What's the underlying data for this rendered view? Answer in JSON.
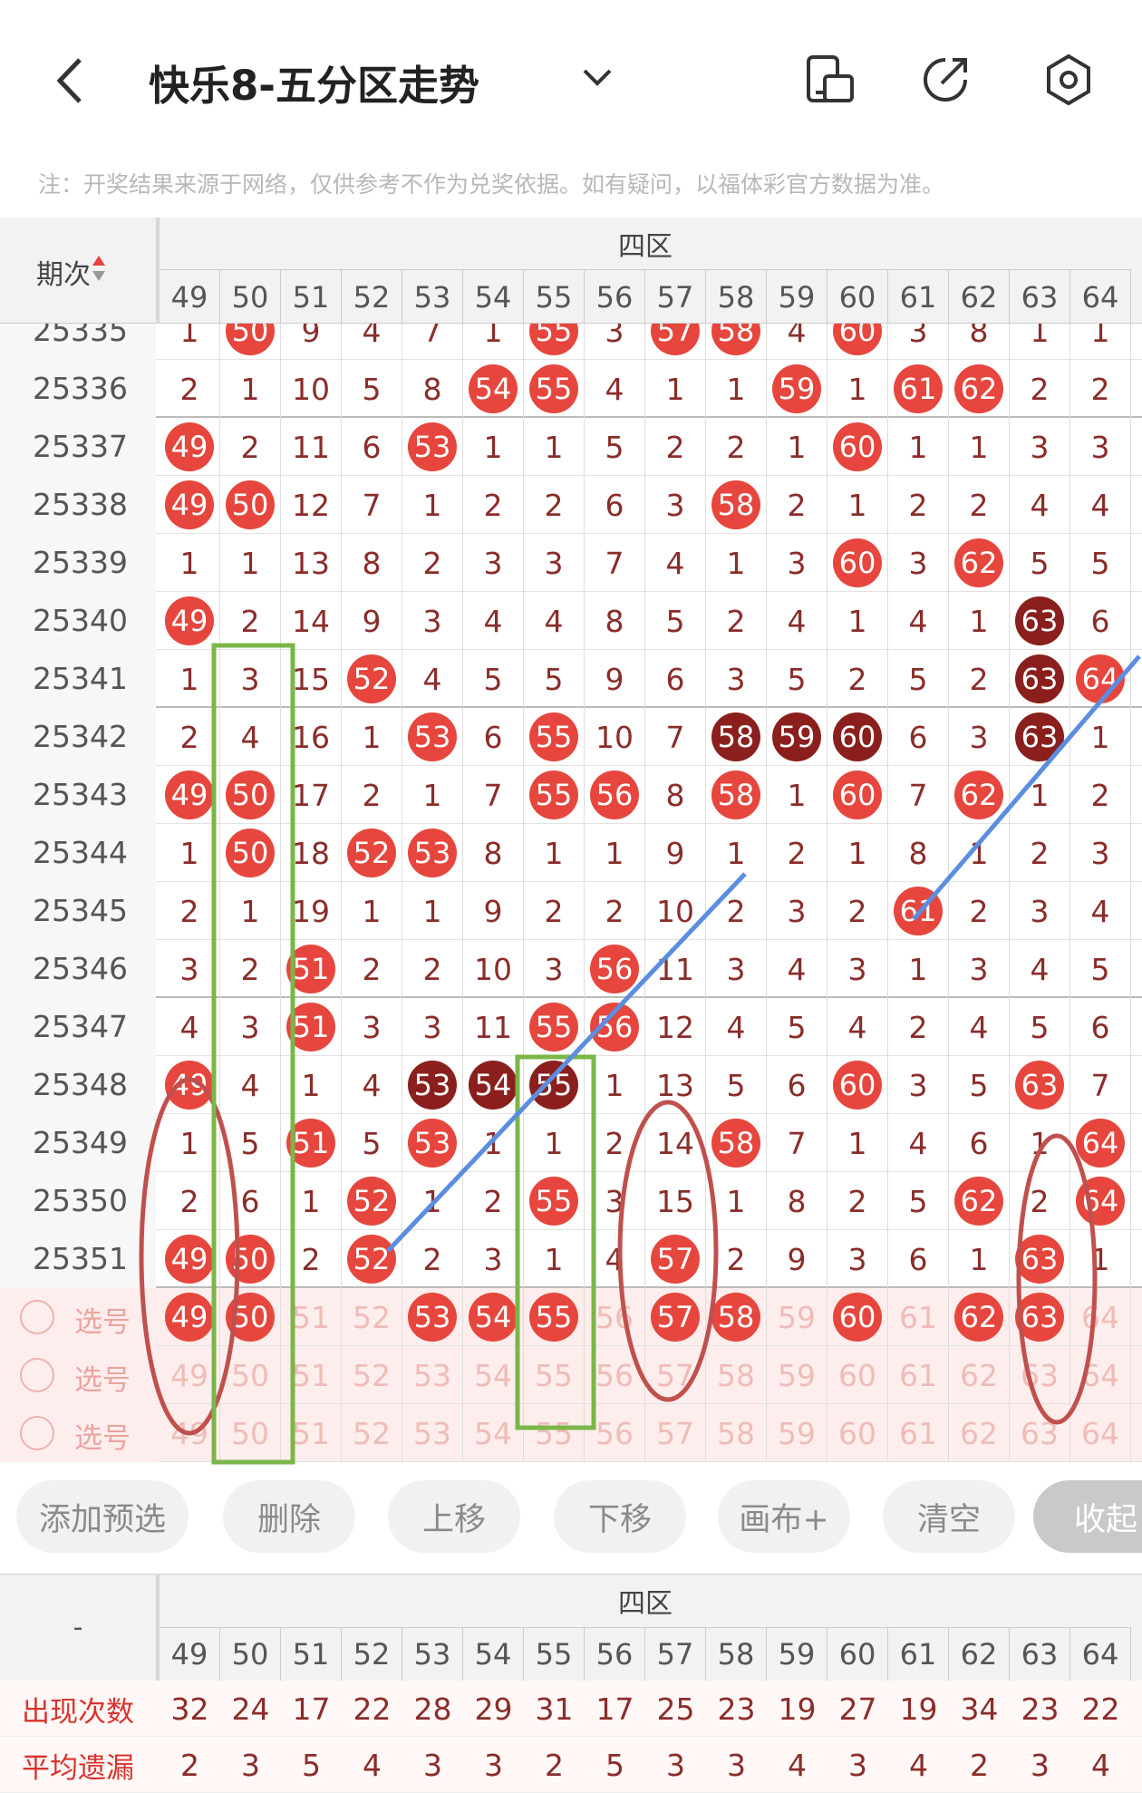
{
  "header": {
    "title": "快乐8-五分区走势",
    "note": "注：开奖结果来源于网络，仅供参考不作为兑奖依据。如有疑问，以福体彩官方数据为准。"
  },
  "grid": {
    "issue_label": "期次",
    "group": "四区",
    "columns": [
      49,
      50,
      51,
      52,
      53,
      54,
      55,
      56,
      57,
      58,
      59,
      60,
      61,
      62,
      63,
      64
    ],
    "rows": [
      {
        "issue": 25335,
        "cells": [
          1,
          {
            "value": 50,
            "style": "hit"
          },
          9,
          4,
          7,
          1,
          {
            "value": 55,
            "style": "hit"
          },
          3,
          {
            "value": 57,
            "style": "hit"
          },
          {
            "value": 58,
            "style": "hit"
          },
          4,
          {
            "value": 60,
            "style": "hit"
          },
          3,
          8,
          1,
          1
        ]
      },
      {
        "issue": 25336,
        "cells": [
          2,
          1,
          10,
          5,
          8,
          {
            "value": 54,
            "style": "hit"
          },
          {
            "value": 55,
            "style": "hit"
          },
          4,
          1,
          1,
          {
            "value": 59,
            "style": "hit"
          },
          1,
          {
            "value": 61,
            "style": "hit"
          },
          {
            "value": 62,
            "style": "hit"
          },
          2,
          2
        ]
      },
      {
        "issue": 25337,
        "cells": [
          {
            "value": 49,
            "style": "hit"
          },
          2,
          11,
          6,
          {
            "value": 53,
            "style": "hit"
          },
          1,
          1,
          5,
          2,
          2,
          1,
          {
            "value": 60,
            "style": "hit"
          },
          1,
          1,
          3,
          3
        ]
      },
      {
        "issue": 25338,
        "cells": [
          {
            "value": 49,
            "style": "hit"
          },
          {
            "value": 50,
            "style": "hit"
          },
          12,
          7,
          1,
          2,
          2,
          6,
          3,
          {
            "value": 58,
            "style": "hit"
          },
          2,
          1,
          2,
          2,
          4,
          4
        ]
      },
      {
        "issue": 25339,
        "cells": [
          1,
          1,
          13,
          8,
          2,
          3,
          3,
          7,
          4,
          1,
          3,
          {
            "value": 60,
            "style": "hit"
          },
          3,
          {
            "value": 62,
            "style": "hit"
          },
          5,
          5
        ]
      },
      {
        "issue": 25340,
        "cells": [
          {
            "value": 49,
            "style": "hit"
          },
          2,
          14,
          9,
          3,
          4,
          4,
          8,
          5,
          2,
          4,
          1,
          4,
          1,
          {
            "value": 63,
            "style": "repeat"
          },
          6
        ]
      },
      {
        "issue": 25341,
        "cells": [
          1,
          3,
          15,
          {
            "value": 52,
            "style": "hit"
          },
          4,
          5,
          5,
          9,
          6,
          3,
          5,
          2,
          5,
          2,
          {
            "value": 63,
            "style": "repeat"
          },
          {
            "value": 64,
            "style": "hit"
          }
        ]
      },
      {
        "issue": 25342,
        "cells": [
          2,
          4,
          16,
          1,
          {
            "value": 53,
            "style": "hit"
          },
          6,
          {
            "value": 55,
            "style": "hit"
          },
          10,
          7,
          {
            "value": 58,
            "style": "repeat"
          },
          {
            "value": 59,
            "style": "repeat"
          },
          {
            "value": 60,
            "style": "repeat"
          },
          6,
          3,
          {
            "value": 63,
            "style": "repeat"
          },
          1
        ]
      },
      {
        "issue": 25343,
        "cells": [
          {
            "value": 49,
            "style": "hit"
          },
          {
            "value": 50,
            "style": "hit"
          },
          17,
          2,
          1,
          7,
          {
            "value": 55,
            "style": "hit"
          },
          {
            "value": 56,
            "style": "hit"
          },
          8,
          {
            "value": 58,
            "style": "hit"
          },
          1,
          {
            "value": 60,
            "style": "hit"
          },
          7,
          {
            "value": 62,
            "style": "hit"
          },
          1,
          2
        ]
      },
      {
        "issue": 25344,
        "cells": [
          1,
          {
            "value": 50,
            "style": "hit"
          },
          18,
          {
            "value": 52,
            "style": "hit"
          },
          {
            "value": 53,
            "style": "hit"
          },
          8,
          1,
          1,
          9,
          1,
          2,
          1,
          8,
          1,
          2,
          3
        ]
      },
      {
        "issue": 25345,
        "cells": [
          2,
          1,
          19,
          1,
          1,
          9,
          2,
          2,
          10,
          2,
          3,
          2,
          {
            "value": 61,
            "style": "hit"
          },
          2,
          3,
          4
        ]
      },
      {
        "issue": 25346,
        "cells": [
          3,
          2,
          {
            "value": 51,
            "style": "hit"
          },
          2,
          2,
          10,
          3,
          {
            "value": 56,
            "style": "hit"
          },
          11,
          3,
          4,
          3,
          1,
          3,
          4,
          5
        ]
      },
      {
        "issue": 25347,
        "cells": [
          4,
          3,
          {
            "value": 51,
            "style": "hit"
          },
          3,
          3,
          11,
          {
            "value": 55,
            "style": "hit"
          },
          {
            "value": 56,
            "style": "hit"
          },
          12,
          4,
          5,
          4,
          2,
          4,
          5,
          6
        ]
      },
      {
        "issue": 25348,
        "cells": [
          {
            "value": 49,
            "style": "hit"
          },
          4,
          1,
          4,
          {
            "value": 53,
            "style": "repeat"
          },
          {
            "value": 54,
            "style": "repeat"
          },
          {
            "value": 55,
            "style": "repeat"
          },
          1,
          13,
          5,
          6,
          {
            "value": 60,
            "style": "hit"
          },
          3,
          5,
          {
            "value": 63,
            "style": "hit"
          },
          7
        ]
      },
      {
        "issue": 25349,
        "cells": [
          1,
          5,
          {
            "value": 51,
            "style": "hit"
          },
          5,
          {
            "value": 53,
            "style": "hit"
          },
          1,
          1,
          2,
          14,
          {
            "value": 58,
            "style": "hit"
          },
          7,
          1,
          4,
          6,
          1,
          {
            "value": 64,
            "style": "hit"
          }
        ]
      },
      {
        "issue": 25350,
        "cells": [
          2,
          6,
          1,
          {
            "value": 52,
            "style": "hit"
          },
          1,
          2,
          {
            "value": 55,
            "style": "hit"
          },
          3,
          15,
          1,
          8,
          2,
          5,
          {
            "value": 62,
            "style": "hit"
          },
          2,
          {
            "value": 64,
            "style": "hit"
          }
        ]
      },
      {
        "issue": 25351,
        "cells": [
          {
            "value": 49,
            "style": "hit"
          },
          {
            "value": 50,
            "style": "hit"
          },
          2,
          {
            "value": 52,
            "style": "hit"
          },
          2,
          3,
          1,
          4,
          {
            "value": 57,
            "style": "hit"
          },
          2,
          9,
          3,
          6,
          1,
          {
            "value": 63,
            "style": "hit"
          },
          1
        ]
      }
    ],
    "select_rows": [
      {
        "label": "选号",
        "cells": [
          {
            "value": 49,
            "style": "hit"
          },
          {
            "value": 50,
            "style": "hit"
          },
          51,
          52,
          {
            "value": 53,
            "style": "hit"
          },
          {
            "value": 54,
            "style": "hit"
          },
          {
            "value": 55,
            "style": "hit"
          },
          56,
          {
            "value": 57,
            "style": "hit"
          },
          {
            "value": 58,
            "style": "hit"
          },
          59,
          {
            "value": 60,
            "style": "hit"
          },
          61,
          {
            "value": 62,
            "style": "hit"
          },
          {
            "value": 63,
            "style": "hit"
          },
          64
        ]
      },
      {
        "label": "选号",
        "cells": [
          49,
          50,
          51,
          52,
          53,
          54,
          55,
          56,
          57,
          58,
          59,
          60,
          61,
          62,
          63,
          64
        ]
      },
      {
        "label": "选号",
        "cells": [
          49,
          50,
          51,
          52,
          53,
          54,
          55,
          56,
          57,
          58,
          59,
          60,
          61,
          62,
          63,
          64
        ]
      }
    ]
  },
  "buttons": [
    "添加预选",
    "删除",
    "上移",
    "下移",
    "画布+",
    "清空",
    "收起"
  ],
  "stats": {
    "corner": "-",
    "group": "四区",
    "columns": [
      49,
      50,
      51,
      52,
      53,
      54,
      55,
      56,
      57,
      58,
      59,
      60,
      61,
      62,
      63,
      64
    ],
    "rows": [
      {
        "label": "出现次数",
        "values": [
          32,
          24,
          17,
          22,
          28,
          29,
          31,
          17,
          25,
          23,
          19,
          27,
          19,
          34,
          23,
          22
        ]
      },
      {
        "label": "平均遗漏",
        "values": [
          2,
          3,
          5,
          4,
          3,
          3,
          2,
          5,
          3,
          3,
          4,
          3,
          4,
          2,
          3,
          4
        ]
      }
    ]
  }
}
